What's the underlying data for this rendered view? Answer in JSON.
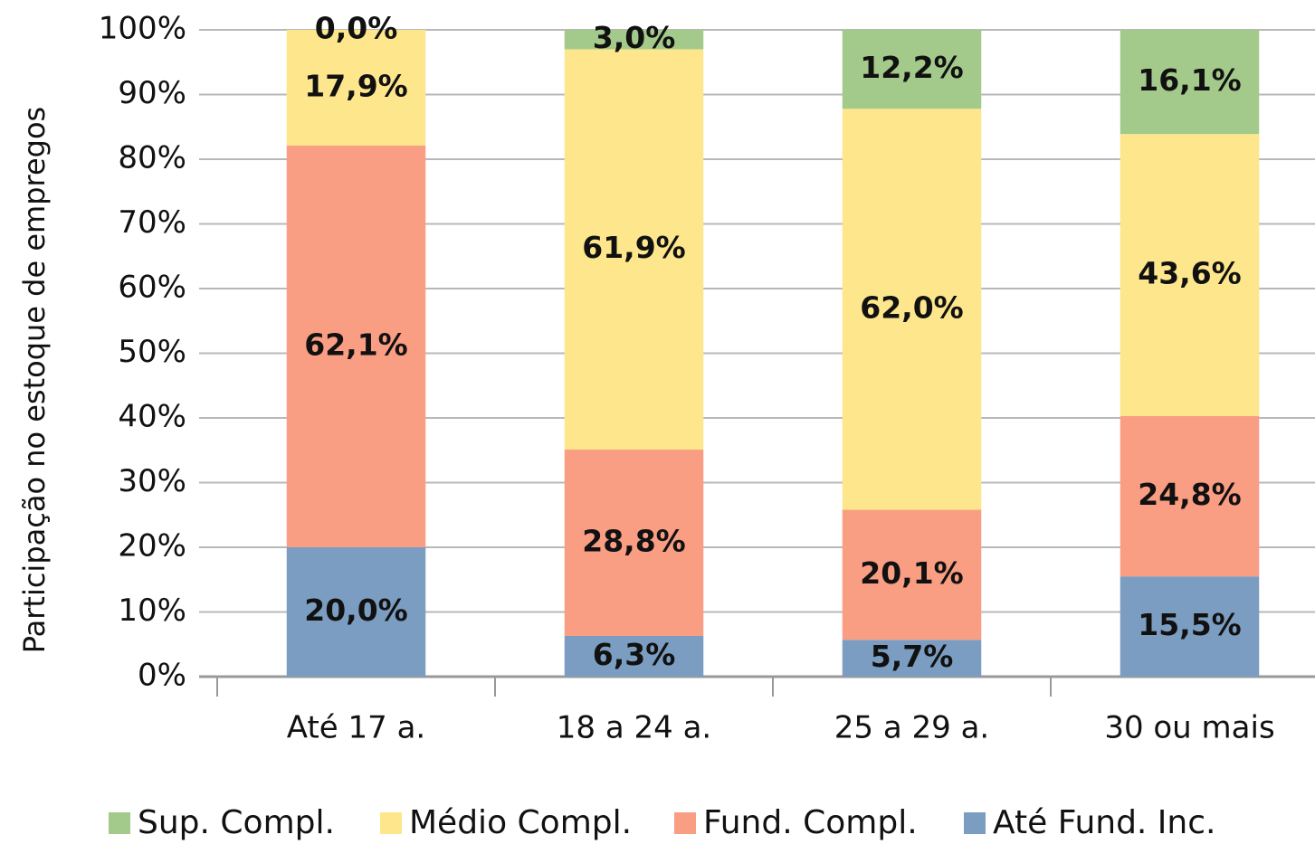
{
  "chart_data": {
    "type": "stacked_bar",
    "y_label": "Participação no estoque de empregos",
    "categories": [
      "Até 17 a.",
      "18 a 24 a.",
      "25 a 29 a.",
      "30 ou mais"
    ],
    "series": [
      {
        "name": "Sup. Compl.",
        "color": "#a3c98b",
        "values": [
          0.0,
          3.0,
          12.2,
          16.1
        ],
        "value_labels": [
          "0,0%",
          "3,0%",
          "12,2%",
          "16,1%"
        ]
      },
      {
        "name": "Médio Compl.",
        "color": "#fde68c",
        "values": [
          17.9,
          61.9,
          62.0,
          43.6
        ],
        "value_labels": [
          "17,9%",
          "61,9%",
          "62,0%",
          "43,6%"
        ]
      },
      {
        "name": "Fund. Compl.",
        "color": "#f99d83",
        "values": [
          62.1,
          28.8,
          20.1,
          24.8
        ],
        "value_labels": [
          "62,1%",
          "28,8%",
          "20,1%",
          "24,8%"
        ]
      },
      {
        "name": "Até Fund. Inc.",
        "color": "#7b9dc1",
        "values": [
          20.0,
          6.3,
          5.7,
          15.5
        ],
        "value_labels": [
          "20,0%",
          "6,3%",
          "5,7%",
          "15,5%"
        ]
      }
    ],
    "ylim": [
      0,
      100
    ],
    "yticks": [
      {
        "value": 0,
        "label": "0%"
      },
      {
        "value": 10,
        "label": "10%"
      },
      {
        "value": 20,
        "label": "20%"
      },
      {
        "value": 30,
        "label": "30%"
      },
      {
        "value": 40,
        "label": "40%"
      },
      {
        "value": 50,
        "label": "50%"
      },
      {
        "value": 60,
        "label": "60%"
      },
      {
        "value": 70,
        "label": "70%"
      },
      {
        "value": 80,
        "label": "80%"
      },
      {
        "value": 90,
        "label": "90%"
      },
      {
        "value": 100,
        "label": "100%"
      }
    ],
    "grid": true,
    "legend": "bottom"
  }
}
